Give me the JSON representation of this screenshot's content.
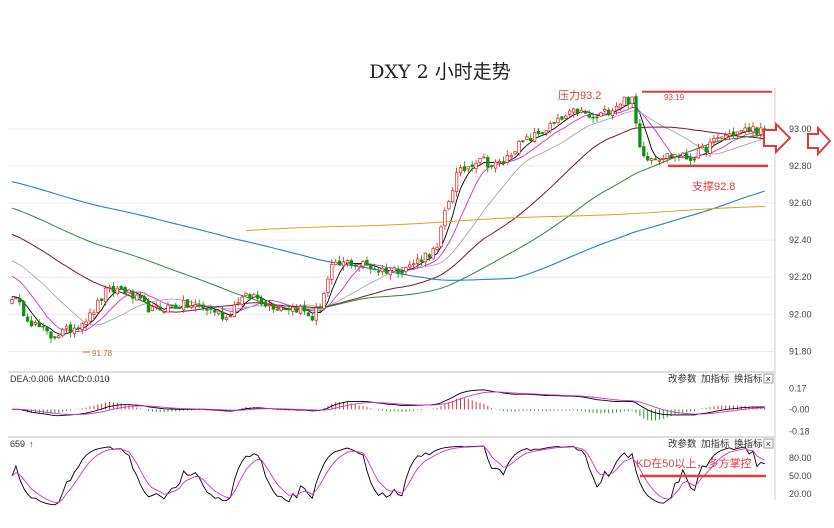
{
  "chart_data": {
    "type": "candlestick",
    "title": "DXY 2 小时走势",
    "ylim": [
      91.7,
      93.22
    ],
    "y_ticks": [
      "93.00",
      "92.80",
      "92.60",
      "92.40",
      "92.20",
      "92.00",
      "91.80"
    ],
    "annotations": {
      "resistance_label": "压力93.2",
      "resistance_value": 93.2,
      "high_label": "93.19",
      "support_label": "支撑92.8",
      "support_value": 92.8,
      "low_label": "91.78"
    },
    "anchors": [
      [
        0,
        92.1
      ],
      [
        5,
        91.96
      ],
      [
        10,
        91.88
      ],
      [
        15,
        91.92
      ],
      [
        20,
        91.99
      ],
      [
        24,
        92.12
      ],
      [
        28,
        92.14
      ],
      [
        32,
        92.08
      ],
      [
        36,
        92.02
      ],
      [
        40,
        92.04
      ],
      [
        44,
        92.05
      ],
      [
        48,
        92.04
      ],
      [
        52,
        92.02
      ],
      [
        55,
        91.98
      ],
      [
        58,
        92.08
      ],
      [
        62,
        92.1
      ],
      [
        66,
        92.05
      ],
      [
        70,
        92.04
      ],
      [
        74,
        92.03
      ],
      [
        77,
        91.98
      ],
      [
        79,
        92.05
      ],
      [
        82,
        92.25
      ],
      [
        86,
        92.28
      ],
      [
        90,
        92.27
      ],
      [
        94,
        92.24
      ],
      [
        98,
        92.24
      ],
      [
        102,
        92.26
      ],
      [
        106,
        92.32
      ],
      [
        109,
        92.35
      ],
      [
        111,
        92.55
      ],
      [
        114,
        92.75
      ],
      [
        117,
        92.8
      ],
      [
        120,
        92.85
      ],
      [
        123,
        92.8
      ],
      [
        126,
        92.82
      ],
      [
        129,
        92.9
      ],
      [
        133,
        92.95
      ],
      [
        137,
        93.0
      ],
      [
        141,
        93.05
      ],
      [
        145,
        93.1
      ],
      [
        149,
        93.05
      ],
      [
        153,
        93.1
      ],
      [
        157,
        93.16
      ],
      [
        159,
        93.15
      ],
      [
        161,
        92.9
      ],
      [
        163,
        92.85
      ],
      [
        166,
        92.85
      ],
      [
        170,
        92.86
      ],
      [
        174,
        92.84
      ],
      [
        178,
        92.9
      ],
      [
        182,
        92.96
      ],
      [
        186,
        92.98
      ],
      [
        190,
        93.0
      ],
      [
        193,
        92.98
      ]
    ],
    "macd": {
      "dea_label": "DEA:0.006",
      "macd_label": "MACD:0.010",
      "y_ticks": [
        "0.17",
        "-0.00",
        "-0.18"
      ],
      "ylim": [
        -0.2,
        0.19
      ]
    },
    "kd": {
      "label": "659",
      "y_ticks": [
        "80.00",
        "50.00",
        "20.00"
      ],
      "ylim": [
        10,
        90
      ],
      "annotation": "KD在50以上，多方掌控",
      "threshold": 50
    },
    "panel_buttons": [
      "改参数",
      "加指标",
      "换指标",
      "×"
    ],
    "colors": {
      "up": "#e02020",
      "down": "#109010",
      "ma5": "#000000",
      "ma10": "#d030d0",
      "ma20": "#a8a8a8",
      "ma60": "#7a1a2a",
      "ma120": "#2a8a3a",
      "ma200": "#2880c0",
      "ma_orange": "#e0a020",
      "annotation": "#e23b3b"
    }
  }
}
